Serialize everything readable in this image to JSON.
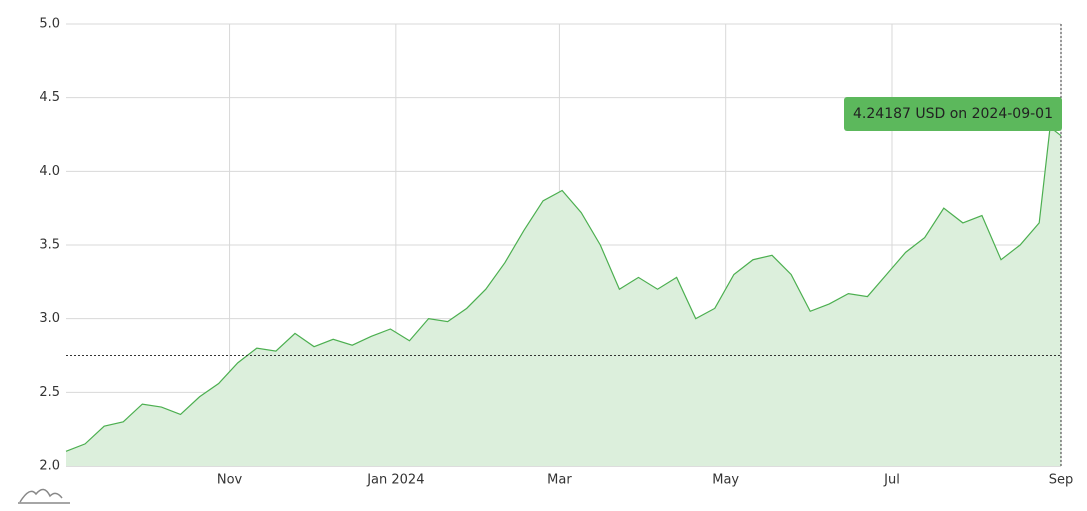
{
  "chart_data": {
    "type": "area",
    "x": [
      "2023-09-02",
      "2023-09-09",
      "2023-09-16",
      "2023-09-23",
      "2023-09-30",
      "2023-10-07",
      "2023-10-14",
      "2023-10-21",
      "2023-10-28",
      "2023-11-04",
      "2023-11-11",
      "2023-11-18",
      "2023-11-25",
      "2023-12-02",
      "2023-12-09",
      "2023-12-16",
      "2023-12-23",
      "2023-12-30",
      "2024-01-06",
      "2024-01-13",
      "2024-01-20",
      "2024-01-27",
      "2024-02-03",
      "2024-02-10",
      "2024-02-17",
      "2024-02-24",
      "2024-03-02",
      "2024-03-09",
      "2024-03-16",
      "2024-03-23",
      "2024-03-30",
      "2024-04-06",
      "2024-04-13",
      "2024-04-20",
      "2024-04-27",
      "2024-05-04",
      "2024-05-11",
      "2024-05-18",
      "2024-05-25",
      "2024-06-01",
      "2024-06-08",
      "2024-06-15",
      "2024-06-22",
      "2024-06-29",
      "2024-07-06",
      "2024-07-13",
      "2024-07-20",
      "2024-07-27",
      "2024-08-03",
      "2024-08-10",
      "2024-08-17",
      "2024-08-24",
      "2024-08-28",
      "2024-09-01"
    ],
    "series": [
      {
        "name": "USD",
        "color": "#4caf50",
        "fill": "#dcefdc",
        "values": [
          2.1,
          2.15,
          2.27,
          2.3,
          2.42,
          2.4,
          2.35,
          2.47,
          2.56,
          2.7,
          2.8,
          2.78,
          2.9,
          2.81,
          2.86,
          2.82,
          2.88,
          2.93,
          2.85,
          3.0,
          2.98,
          3.07,
          3.2,
          3.38,
          3.6,
          3.8,
          3.87,
          3.72,
          3.5,
          3.2,
          3.28,
          3.2,
          3.28,
          3.0,
          3.07,
          3.3,
          3.4,
          3.43,
          3.3,
          3.05,
          3.1,
          3.17,
          3.15,
          3.3,
          3.45,
          3.55,
          3.75,
          3.65,
          3.7,
          3.4,
          3.5,
          3.65,
          4.3,
          4.24187
        ]
      }
    ],
    "xlim": [
      "2023-09-02",
      "2024-09-01"
    ],
    "xticks": [
      {
        "value": "2023-11-01",
        "label": "Nov"
      },
      {
        "value": "2024-01-01",
        "label": "Jan 2024"
      },
      {
        "value": "2024-03-01",
        "label": "Mar"
      },
      {
        "value": "2024-05-01",
        "label": "May"
      },
      {
        "value": "2024-07-01",
        "label": "Jul"
      },
      {
        "value": "2024-09-01",
        "label": "Sep"
      }
    ],
    "ylim": [
      2,
      5
    ],
    "yticks": [
      {
        "value": 2,
        "label": "2.0"
      },
      2.5,
      {
        "value": 3,
        "label": "3.0"
      },
      3.5,
      {
        "value": 4,
        "label": "4.0"
      },
      4.5,
      {
        "value": 5,
        "label": "5.0"
      }
    ],
    "grid": true,
    "reference_line": 2.75,
    "tooltip": "4.24187 USD on 2024-09-01"
  }
}
